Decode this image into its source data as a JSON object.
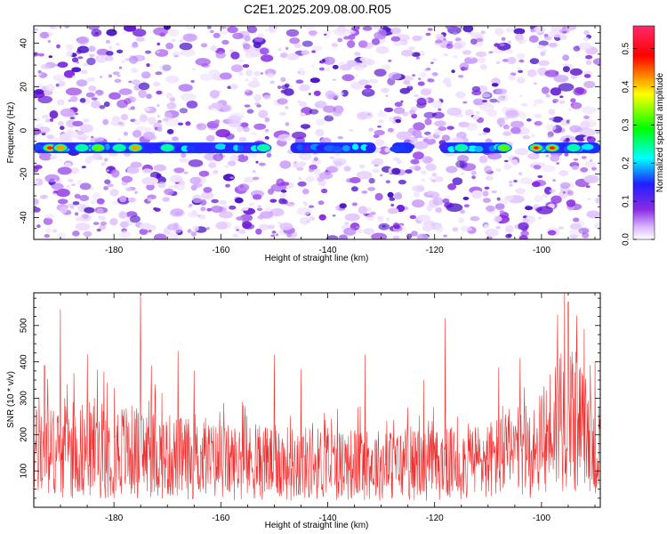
{
  "title": "C2E1.2025.209.08.00.R05",
  "chart_data": [
    {
      "type": "heatmap",
      "xlabel": "Height of straight line (km)",
      "ylabel": "Frequency (Hz)",
      "xlim": [
        -195,
        -89
      ],
      "ylim": [
        -50,
        48
      ],
      "xticks": [
        -180,
        -160,
        -140,
        -120,
        -100
      ],
      "yticks": [
        -40,
        -20,
        0,
        20,
        40
      ],
      "colorbar": {
        "label": "Normalized spectral amplitude",
        "range": [
          0,
          0.56
        ],
        "ticks": [
          0.0,
          0.1,
          0.2,
          0.3,
          0.4,
          0.5
        ],
        "colors": [
          "#ffffff",
          "#d8b4ff",
          "#8a2be2",
          "#2020ff",
          "#00ffff",
          "#00ff00",
          "#ffff00",
          "#ff0000",
          "#ff2a6a"
        ]
      },
      "band": {
        "frequency_hz": -8,
        "segments": [
          [
            -195,
            -151
          ],
          [
            -147,
            -131
          ],
          [
            -128,
            -124
          ],
          [
            -119,
            -106
          ],
          [
            -102,
            -89
          ]
        ],
        "hotspots": [
          {
            "x": -192,
            "amp": 0.5
          },
          {
            "x": -190,
            "amp": 0.48
          },
          {
            "x": -186,
            "amp": 0.3
          },
          {
            "x": -183,
            "amp": 0.32
          },
          {
            "x": -179,
            "amp": 0.28
          },
          {
            "x": -176,
            "amp": 0.45
          },
          {
            "x": -170,
            "amp": 0.3
          },
          {
            "x": -152,
            "amp": 0.3
          },
          {
            "x": -115,
            "amp": 0.25
          },
          {
            "x": -107,
            "amp": 0.4
          },
          {
            "x": -101,
            "amp": 0.5
          },
          {
            "x": -98,
            "amp": 0.5
          },
          {
            "x": -94,
            "amp": 0.3
          }
        ]
      }
    },
    {
      "type": "line",
      "xlabel": "Height of straight line (km)",
      "ylabel": "SNR (10 * v/v)",
      "xlim": [
        -195,
        -89
      ],
      "ylim": [
        0,
        590
      ],
      "xticks": [
        -180,
        -160,
        -140,
        -120,
        -100
      ],
      "yticks": [
        100,
        200,
        300,
        400,
        500
      ],
      "line_color": "#f03030",
      "baseline": {
        "x": [
          -195,
          -180,
          -170,
          -160,
          -140,
          -120,
          -110,
          -100,
          -96,
          -92,
          -89
        ],
        "y": [
          150,
          160,
          140,
          125,
          120,
          115,
          130,
          165,
          280,
          200,
          130
        ]
      },
      "peaks": [
        {
          "x": -193,
          "y": 390
        },
        {
          "x": -190,
          "y": 545
        },
        {
          "x": -185,
          "y": 420
        },
        {
          "x": -175,
          "y": 590
        },
        {
          "x": -173,
          "y": 390
        },
        {
          "x": -168,
          "y": 430
        },
        {
          "x": -165,
          "y": 375
        },
        {
          "x": -150,
          "y": 420
        },
        {
          "x": -145,
          "y": 380
        },
        {
          "x": -133,
          "y": 420
        },
        {
          "x": -122,
          "y": 350
        },
        {
          "x": -118,
          "y": 520
        },
        {
          "x": -108,
          "y": 385
        },
        {
          "x": -104,
          "y": 410
        },
        {
          "x": -97,
          "y": 530
        },
        {
          "x": -95,
          "y": 565
        },
        {
          "x": -92,
          "y": 490
        },
        {
          "x": -90,
          "y": 400
        }
      ]
    }
  ]
}
